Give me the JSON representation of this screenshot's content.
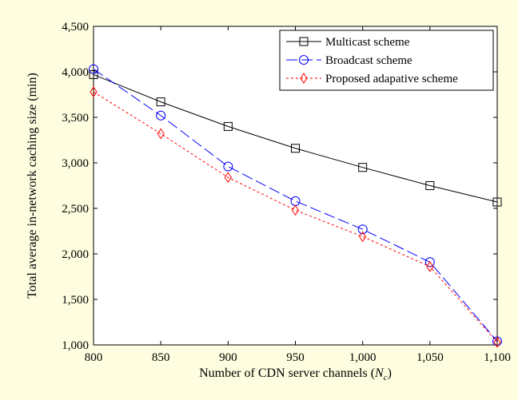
{
  "chart_data": {
    "type": "line",
    "title": "",
    "xlabel": "Number of CDN server channels",
    "xlabel_symbol": "N",
    "xlabel_subscript": "c",
    "ylabel": "Total average in-network caching size (min)",
    "xlim": [
      800,
      1100
    ],
    "ylim": [
      1000,
      4500
    ],
    "x_ticks": [
      800,
      850,
      900,
      950,
      1000,
      1050,
      1100
    ],
    "x_tick_labels": [
      "800",
      "850",
      "900",
      "950",
      "1,000",
      "1,050",
      "1,100"
    ],
    "y_ticks": [
      1000,
      1500,
      2000,
      2500,
      3000,
      3500,
      4000,
      4500
    ],
    "y_tick_labels": [
      "1,000",
      "1,500",
      "2,000",
      "2,500",
      "3,000",
      "3,500",
      "4,000",
      "4,500"
    ],
    "grid": false,
    "legend_position": "top-right",
    "x": [
      800,
      850,
      900,
      950,
      1000,
      1050,
      1100
    ],
    "series": [
      {
        "name": "Multicast scheme",
        "values": [
          3970,
          3670,
          3400,
          3160,
          2950,
          2750,
          2570
        ],
        "color": "#000000",
        "marker": "square",
        "dash": "solid"
      },
      {
        "name": "Broadcast scheme",
        "values": [
          4030,
          3520,
          2960,
          2580,
          2270,
          1910,
          1040
        ],
        "color": "#0000ff",
        "marker": "circle",
        "dash": "longdash"
      },
      {
        "name": "Proposed adapative scheme",
        "values": [
          3780,
          3320,
          2840,
          2480,
          2190,
          1860,
          1030
        ],
        "color": "#ff0000",
        "marker": "diamond",
        "dash": "dotted"
      }
    ]
  }
}
